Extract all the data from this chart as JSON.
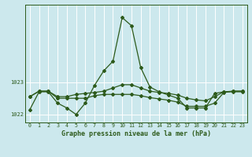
{
  "background_color": "#cce8ed",
  "grid_color": "#ffffff",
  "line_color": "#2d5a1b",
  "xlabel": "Graphe pression niveau de la mer (hPa)",
  "ylim": [
    1021.75,
    1025.4
  ],
  "yticks": [
    1022,
    1023
  ],
  "xlim": [
    -0.5,
    23.5
  ],
  "xticks": [
    0,
    1,
    2,
    3,
    4,
    5,
    6,
    7,
    8,
    9,
    10,
    11,
    12,
    13,
    14,
    15,
    16,
    17,
    18,
    19,
    20,
    21,
    22,
    23
  ],
  "line1": [
    1022.15,
    1022.7,
    1022.7,
    1022.35,
    1022.2,
    1022.0,
    1022.35,
    1022.9,
    1023.35,
    1023.65,
    1025.0,
    1024.75,
    1023.45,
    1022.85,
    1022.7,
    1022.6,
    1022.5,
    1022.2,
    1022.2,
    1022.2,
    1022.65,
    1022.7,
    1022.7,
    1022.7
  ],
  "line2": [
    1022.55,
    1022.72,
    1022.72,
    1022.55,
    1022.55,
    1022.62,
    1022.65,
    1022.68,
    1022.72,
    1022.82,
    1022.92,
    1022.92,
    1022.82,
    1022.72,
    1022.68,
    1022.65,
    1022.6,
    1022.5,
    1022.45,
    1022.42,
    1022.55,
    1022.7,
    1022.72,
    1022.72
  ],
  "line3": [
    1022.55,
    1022.72,
    1022.72,
    1022.5,
    1022.5,
    1022.5,
    1022.5,
    1022.58,
    1022.62,
    1022.62,
    1022.62,
    1022.62,
    1022.58,
    1022.52,
    1022.48,
    1022.44,
    1022.38,
    1022.25,
    1022.25,
    1022.25,
    1022.35,
    1022.68,
    1022.72,
    1022.72
  ]
}
